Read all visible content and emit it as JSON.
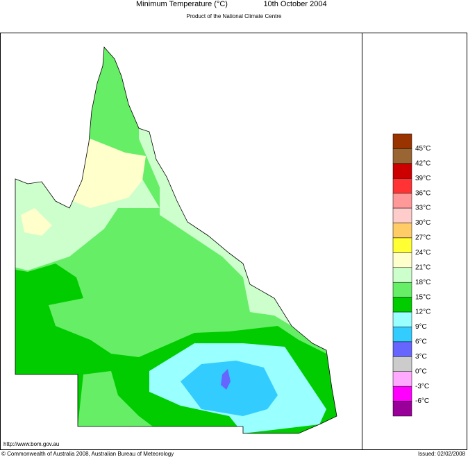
{
  "header": {
    "title": "Minimum Temperature (°C)",
    "date": "10th October 2004",
    "subtitle": "Product of the National Climate Centre"
  },
  "legend": {
    "colors": [
      "#993300",
      "#996633",
      "#cc0000",
      "#ff3333",
      "#ff9999",
      "#ffcccc",
      "#ffcc66",
      "#ffff33",
      "#ffffcc",
      "#ccffcc",
      "#66ee66",
      "#00cc00",
      "#99ffff",
      "#33ccff",
      "#6666ff",
      "#cccccc",
      "#ffaaff",
      "#ff00ff",
      "#990099"
    ],
    "labels": [
      "45°C",
      "42°C",
      "39°C",
      "36°C",
      "33°C",
      "30°C",
      "27°C",
      "24°C",
      "21°C",
      "18°C",
      "15°C",
      "12°C",
      "9°C",
      "6°C",
      "3°C",
      "0°C",
      "-3°C",
      "-6°C"
    ]
  },
  "footer": {
    "url": "http://www.bom.gov.au",
    "copyright": "© Commonwealth of Australia 2008, Australian Bureau of Meteorology",
    "issued": "Issued: 02/02/2008"
  }
}
